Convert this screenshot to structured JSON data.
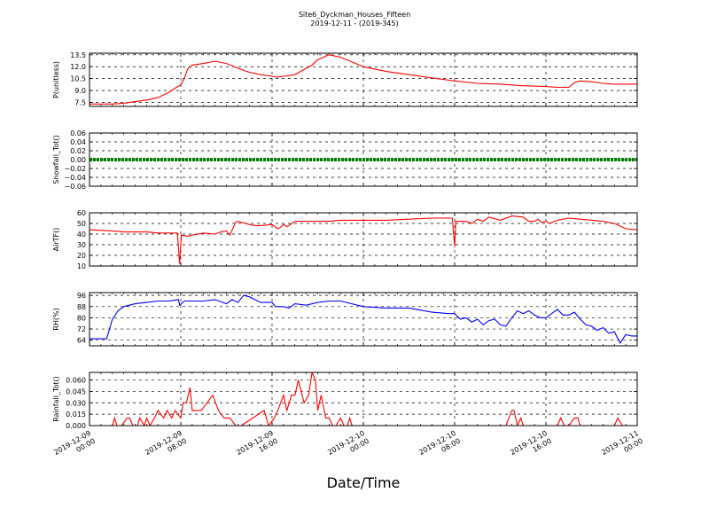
{
  "figure": {
    "title_line1": "Site6_Dyckman_Houses_Fifteen",
    "title_line2": "2019-12-11 - (2019-345)",
    "xlabel": "Date/Time",
    "xtick_labels": [
      [
        "2019-12-09",
        "00:00"
      ],
      [
        "2019-12-09",
        "08:00"
      ],
      [
        "2019-12-09",
        "16:00"
      ],
      [
        "2019-12-10",
        "00:00"
      ],
      [
        "2019-12-10",
        "08:00"
      ],
      [
        "2019-12-10",
        "16:00"
      ],
      [
        "2019-12-11",
        "00:00"
      ]
    ]
  },
  "chart_data": [
    {
      "type": "line",
      "ylabel": "P(unitless)",
      "color": "#ff0000",
      "ylim": [
        7.0,
        13.7
      ],
      "yticks": [
        "7.5",
        "9.0",
        "10.5",
        "12.0",
        "13.5"
      ],
      "ytick_values": [
        7.5,
        9.0,
        10.5,
        12.0,
        13.5
      ],
      "x_hours": [
        0,
        2,
        3,
        4,
        5,
        6,
        7,
        7.5,
        8,
        8.3,
        8.6,
        9,
        10,
        11,
        12,
        13,
        14,
        15,
        16,
        16.5,
        17,
        18,
        19,
        19.5,
        20,
        20.5,
        21,
        22,
        24,
        26,
        28,
        30,
        32,
        34,
        36,
        38,
        40,
        41,
        42,
        42.5,
        43,
        44,
        45,
        46,
        47,
        48
      ],
      "values": [
        7.3,
        7.3,
        7.4,
        7.6,
        7.8,
        8.1,
        8.8,
        9.3,
        9.7,
        10.5,
        11.7,
        12.2,
        12.4,
        12.7,
        12.4,
        11.8,
        11.3,
        11.0,
        10.8,
        10.7,
        10.8,
        11.0,
        11.8,
        12.2,
        12.9,
        13.2,
        13.5,
        13.2,
        12.0,
        11.4,
        11.0,
        10.6,
        10.2,
        9.9,
        9.8,
        9.6,
        9.5,
        9.4,
        9.4,
        10.0,
        10.2,
        10.1,
        9.9,
        9.8,
        9.8,
        9.8
      ]
    },
    {
      "type": "line",
      "ylabel": "Snowfall_Tot()",
      "color": "#008000",
      "ylim": [
        -0.06,
        0.06
      ],
      "yticks": [
        "−0.06",
        "−0.04",
        "−0.02",
        "0.00",
        "0.02",
        "0.04",
        "0.06"
      ],
      "ytick_values": [
        -0.06,
        -0.04,
        -0.02,
        0.0,
        0.02,
        0.04,
        0.06
      ],
      "x_hours": [
        0,
        48
      ],
      "values": [
        0.0,
        0.0
      ]
    },
    {
      "type": "line",
      "ylabel": "AirTF()",
      "color": "#ff0000",
      "ylim": [
        10,
        60
      ],
      "yticks": [
        "10",
        "20",
        "30",
        "40",
        "50",
        "60"
      ],
      "ytick_values": [
        10,
        20,
        30,
        40,
        50,
        60
      ],
      "x_hours": [
        0,
        2,
        3,
        4,
        5,
        6,
        7,
        7.7,
        7.9,
        8.05,
        8.6,
        9,
        10,
        11,
        11.5,
        12,
        12.3,
        12.8,
        13,
        14,
        14.5,
        15,
        16,
        16.5,
        16.7,
        17,
        17.3,
        17.6,
        18,
        19,
        20,
        21,
        22,
        24,
        26,
        28,
        30,
        31.5,
        31.8,
        32.0,
        32.1,
        33,
        33.5,
        34,
        34.5,
        35,
        36,
        37,
        38,
        38.5,
        39,
        39.3,
        39.6,
        40,
        40.3,
        41,
        42,
        43,
        45,
        46,
        47,
        48
      ],
      "values": [
        44,
        43,
        42,
        42,
        42,
        41,
        41,
        41,
        12,
        39,
        38,
        39,
        41,
        40,
        42,
        43,
        39,
        51,
        52,
        49,
        48,
        48,
        49,
        45,
        46,
        49,
        47,
        49,
        52,
        52,
        52,
        52,
        53,
        53,
        53,
        54,
        55,
        55,
        55,
        28,
        52,
        52,
        50,
        54,
        52,
        56,
        53,
        57,
        56,
        52,
        52,
        54,
        51,
        52,
        50,
        53,
        55,
        54,
        52,
        50,
        45,
        44
      ]
    },
    {
      "type": "line",
      "ylabel": "RH(%)",
      "color": "#0000ff",
      "ylim": [
        60,
        98
      ],
      "yticks": [
        "64",
        "72",
        "80",
        "88",
        "96"
      ],
      "ytick_values": [
        64,
        72,
        80,
        88,
        96
      ],
      "x_hours": [
        0,
        1.5,
        2,
        2.5,
        3,
        4,
        5,
        6,
        7,
        7.8,
        7.9,
        8.3,
        9,
        10,
        11,
        12,
        12.5,
        13,
        13.5,
        14,
        15,
        16,
        16.3,
        17,
        17.5,
        18,
        19,
        20,
        21,
        22,
        24,
        26,
        28,
        30,
        31.5,
        32,
        32.5,
        33,
        33.5,
        34,
        34.5,
        35,
        35.5,
        36,
        36.5,
        37,
        37.5,
        38,
        38.5,
        39,
        39.5,
        40,
        40.5,
        41,
        41.5,
        42,
        42.5,
        43,
        43.5,
        44,
        44.5,
        45,
        45.5,
        46,
        46.5,
        47,
        47.5,
        48
      ],
      "values": [
        65,
        65,
        79,
        85,
        88,
        90,
        91,
        92,
        92,
        93,
        89,
        92,
        92,
        92,
        93,
        90,
        93,
        91,
        96,
        95,
        91,
        91,
        88,
        88,
        87,
        90,
        89,
        91,
        92,
        92,
        88,
        87,
        87,
        84,
        83,
        83,
        79,
        80,
        77,
        79,
        75,
        78,
        79,
        75,
        74,
        80,
        85,
        83,
        85,
        82,
        80,
        80,
        83,
        86,
        82,
        82,
        84,
        79,
        75,
        74,
        71,
        73,
        69,
        70,
        62,
        68,
        67,
        67
      ]
    },
    {
      "type": "line",
      "ylabel": "Rainfall_Tot()",
      "color": "#ff0000",
      "ylim": [
        0,
        0.07
      ],
      "yticks": [
        "0.000",
        "0.015",
        "0.030",
        "0.045",
        "0.060"
      ],
      "ytick_values": [
        0.0,
        0.015,
        0.03,
        0.045,
        0.06
      ],
      "x_hours": [
        0,
        2,
        2.2,
        2.4,
        2.8,
        3.3,
        3.5,
        3.8,
        4.2,
        4.4,
        4.8,
        5.0,
        5.3,
        5.7,
        6.0,
        6.5,
        6.8,
        7.2,
        7.5,
        8.0,
        8.2,
        8.5,
        8.8,
        9.0,
        9.3,
        9.8,
        10.3,
        10.8,
        11.3,
        11.8,
        12.3,
        12.8,
        13.3,
        15.3,
        15.7,
        16.2,
        16.5,
        17.0,
        17.3,
        17.7,
        18.0,
        18.3,
        18.8,
        19.2,
        19.5,
        19.8,
        20.0,
        20.3,
        20.7,
        21.0,
        21.3,
        21.6,
        22.0,
        22.3,
        22.6,
        22.8,
        23.0,
        23.3,
        23.6,
        24.0,
        24.3,
        36.5,
        37.0,
        37.2,
        37.5,
        37.8,
        38.0,
        38.3,
        41.0,
        41.3,
        41.6,
        42.0,
        42.5,
        42.8,
        43.0,
        46.0,
        46.3,
        46.7,
        48
      ],
      "values": [
        0,
        0,
        0.01,
        0,
        0,
        0.01,
        0.01,
        0,
        0,
        0.01,
        0,
        0.01,
        0,
        0.01,
        0.02,
        0.01,
        0.02,
        0.01,
        0.02,
        0.01,
        0.03,
        0.03,
        0.05,
        0.02,
        0.02,
        0.02,
        0.03,
        0.04,
        0.02,
        0.01,
        0.01,
        0,
        0,
        0.02,
        0,
        0.01,
        0.02,
        0.04,
        0.02,
        0.04,
        0.04,
        0.06,
        0.03,
        0.04,
        0.07,
        0.06,
        0.02,
        0.04,
        0.01,
        0.01,
        0,
        0,
        0.01,
        0,
        0,
        0.01,
        0,
        0,
        0,
        0,
        0,
        0,
        0.02,
        0.02,
        0,
        0.01,
        0,
        0,
        0,
        0.01,
        0,
        0,
        0.01,
        0.01,
        0,
        0,
        0.01,
        0,
        0
      ]
    }
  ]
}
